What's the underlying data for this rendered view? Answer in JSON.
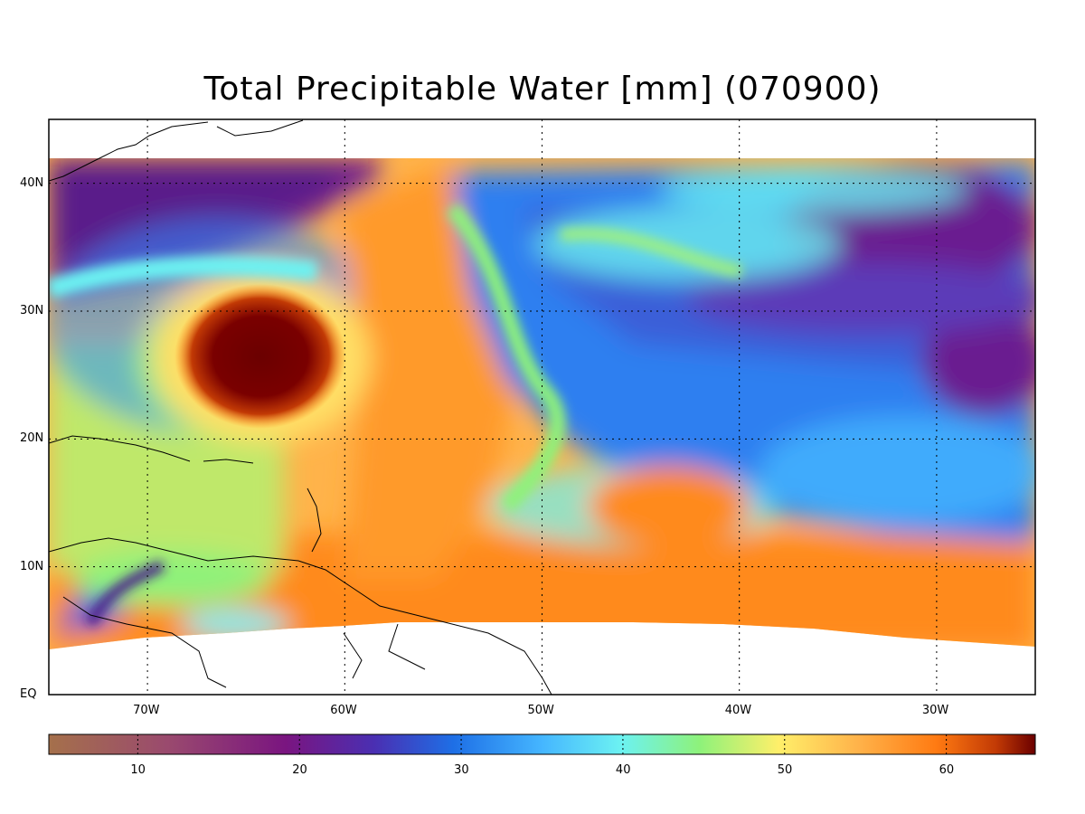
{
  "title": "Total Precipitable Water [mm]  (070900)",
  "map": {
    "lon_range": [
      -75,
      -25
    ],
    "lat_range": [
      0,
      45
    ],
    "data_lat_top": 42,
    "lon_ticks": [
      {
        "value": -70,
        "label": "70W"
      },
      {
        "value": -60,
        "label": "60W"
      },
      {
        "value": -50,
        "label": "50W"
      },
      {
        "value": -40,
        "label": "40W"
      },
      {
        "value": -30,
        "label": "30W"
      }
    ],
    "lat_ticks": [
      {
        "value": 0,
        "label": "EQ"
      },
      {
        "value": 10,
        "label": "10N"
      },
      {
        "value": 20,
        "label": "20N"
      },
      {
        "value": 30,
        "label": "30N"
      },
      {
        "value": 40,
        "label": "40N"
      }
    ],
    "grid": "dotted",
    "features": {
      "hurricane_center": {
        "lon": -64.2,
        "lat": 26.6,
        "tpw": 65
      },
      "tropical_moist_band_lat": 9,
      "dry_air_region": "north-east"
    }
  },
  "colorbar": {
    "range": [
      4.5,
      65.5
    ],
    "ticks": [
      10,
      20,
      30,
      40,
      50,
      60
    ],
    "colors": [
      "#a5704b",
      "#9a4a6e",
      "#6f0f86",
      "#3a3fc2",
      "#1e6fe6",
      "#2aa0ff",
      "#6cf2f2",
      "#8ef27a",
      "#ffef6a",
      "#ffb34a",
      "#ff7a12",
      "#c23a05",
      "#6b0000"
    ]
  }
}
